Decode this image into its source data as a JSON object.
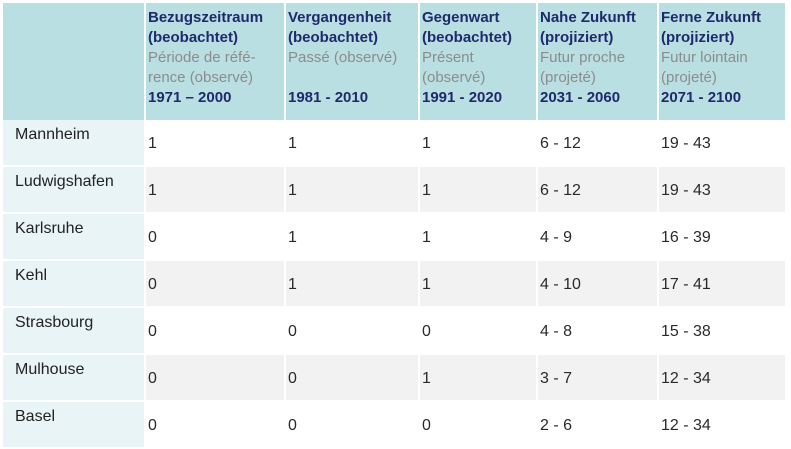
{
  "columns": [
    {
      "de": "Bezugszeitraum",
      "de2": "(beobachtet)",
      "fr1": "Période de réfé-",
      "fr2": "rence (observé)",
      "period": "1971 – 2000"
    },
    {
      "de": "Vergangenheit",
      "de2": "(beobachtet)",
      "fr1": "Passé (observé)",
      "fr2": "",
      "period": "1981 - 2010"
    },
    {
      "de": "Gegenwart",
      "de2": "(beobachtet)",
      "fr1": "Présent",
      "fr2": "(observé)",
      "period": "1991 - 2020"
    },
    {
      "de": "Nahe Zukunft",
      "de2": "(projiziert)",
      "fr1": "Futur proche",
      "fr2": "(projeté)",
      "period": "2031 - 2060"
    },
    {
      "de": "Ferne Zukunft",
      "de2": "(projiziert)",
      "fr1": "Futur lointain",
      "fr2": "(projeté)",
      "period": "2071 - 2100"
    }
  ],
  "rows": [
    {
      "city": "Mannheim",
      "values": [
        "1",
        "1",
        "1",
        "6 - 12",
        "19 - 43"
      ]
    },
    {
      "city": "Ludwigshafen",
      "values": [
        "1",
        "1",
        "1",
        "6 - 12",
        "19 - 43"
      ]
    },
    {
      "city": "Karlsruhe",
      "values": [
        "0",
        "1",
        "1",
        "4 - 9",
        "16 - 39"
      ]
    },
    {
      "city": "Kehl",
      "values": [
        "0",
        "1",
        "1",
        "4 - 10",
        "17 - 41"
      ]
    },
    {
      "city": "Strasbourg",
      "values": [
        "0",
        "0",
        "0",
        "4 - 8",
        "15 - 38"
      ]
    },
    {
      "city": "Mulhouse",
      "values": [
        "0",
        "0",
        "1",
        "3 - 7",
        "12 - 34"
      ]
    },
    {
      "city": "Basel",
      "values": [
        "0",
        "0",
        "0",
        "2 - 6",
        "12 - 34"
      ]
    }
  ]
}
